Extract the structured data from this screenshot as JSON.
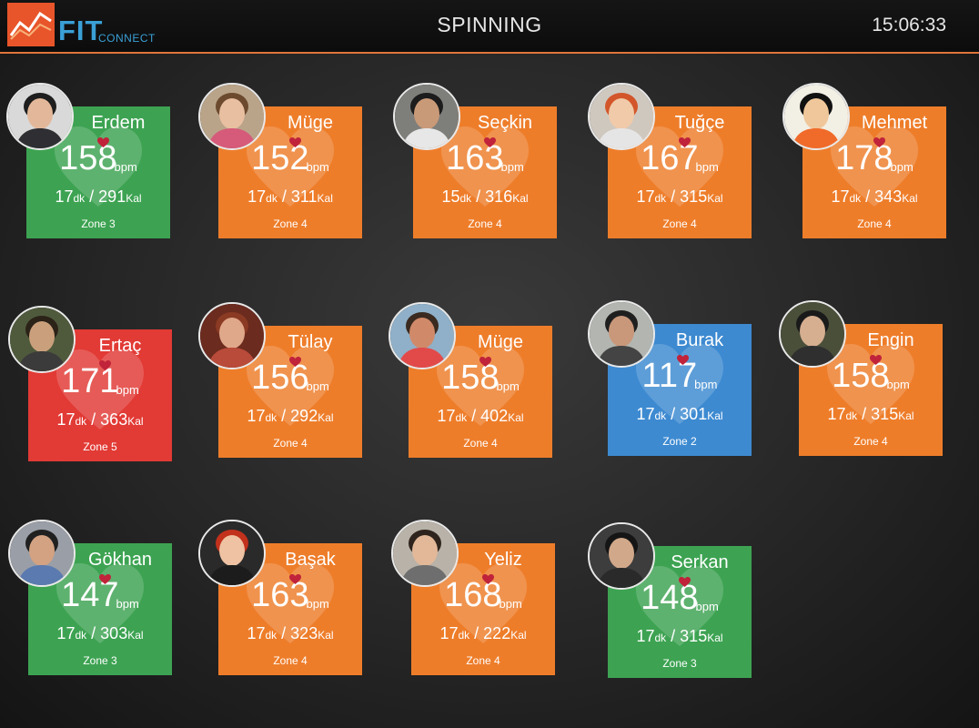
{
  "app": {
    "logo_text": "FIT",
    "logo_subtext": "CONNECT",
    "title": "SPINNING",
    "clock": "15:06:33"
  },
  "units": {
    "bpm": "bpm",
    "dk": "dk",
    "kal": "Kal",
    "separator": " / "
  },
  "colors": {
    "zone2": "#3d8ad1",
    "zone3": "#3da352",
    "zone4": "#ee7d2a",
    "zone5": "#e23a35",
    "header_accent": "#e0743a"
  },
  "participants": [
    {
      "name": "Erdem",
      "bpm": "158",
      "dk": "17",
      "kal": "291",
      "zone": "Zone 3",
      "zone_num": 3
    },
    {
      "name": "Müge",
      "bpm": "152",
      "dk": "17",
      "kal": "311",
      "zone": "Zone 4",
      "zone_num": 4
    },
    {
      "name": "Seçkin",
      "bpm": "163",
      "dk": "15",
      "kal": "316",
      "zone": "Zone 4",
      "zone_num": 4
    },
    {
      "name": "Tuğçe",
      "bpm": "167",
      "dk": "17",
      "kal": "315",
      "zone": "Zone 4",
      "zone_num": 4
    },
    {
      "name": "Mehmet",
      "bpm": "178",
      "dk": "17",
      "kal": "343",
      "zone": "Zone 4",
      "zone_num": 4
    },
    {
      "name": "Ertaç",
      "bpm": "171",
      "dk": "17",
      "kal": "363",
      "zone": "Zone 5",
      "zone_num": 5
    },
    {
      "name": "Tülay",
      "bpm": "156",
      "dk": "17",
      "kal": "292",
      "zone": "Zone 4",
      "zone_num": 4
    },
    {
      "name": "Müge",
      "bpm": "158",
      "dk": "17",
      "kal": "402",
      "zone": "Zone 4",
      "zone_num": 4
    },
    {
      "name": "Burak",
      "bpm": "117",
      "dk": "17",
      "kal": "301",
      "zone": "Zone 2",
      "zone_num": 2
    },
    {
      "name": "Engin",
      "bpm": "158",
      "dk": "17",
      "kal": "315",
      "zone": "Zone 4",
      "zone_num": 4
    },
    {
      "name": "Gökhan",
      "bpm": "147",
      "dk": "17",
      "kal": "303",
      "zone": "Zone 3",
      "zone_num": 3
    },
    {
      "name": "Başak",
      "bpm": "163",
      "dk": "17",
      "kal": "323",
      "zone": "Zone 4",
      "zone_num": 4
    },
    {
      "name": "Yeliz",
      "bpm": "168",
      "dk": "17",
      "kal": "222",
      "zone": "Zone 4",
      "zone_num": 4
    },
    {
      "name": "Serkan",
      "bpm": "148",
      "dk": "17",
      "kal": "315",
      "zone": "Zone 3",
      "zone_num": 3
    }
  ]
}
